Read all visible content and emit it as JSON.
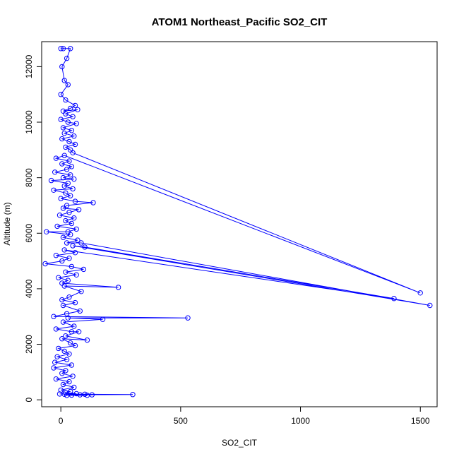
{
  "chart_data": {
    "type": "line",
    "title": "ATOM1 Northeast_Pacific SO2_CIT",
    "xlabel": "SO2_CIT",
    "ylabel": "Altitude (m)",
    "xlim": [
      -80,
      1570
    ],
    "ylim": [
      -250,
      12900
    ],
    "xticks": [
      0,
      500,
      1000,
      1500
    ],
    "yticks": [
      0,
      2000,
      4000,
      6000,
      8000,
      10000,
      12000
    ],
    "grid": false,
    "legend": "none",
    "series_color": "#0000ff",
    "points": [
      [
        0,
        12650
      ],
      [
        10,
        12650
      ],
      [
        40,
        12650
      ],
      [
        25,
        12300
      ],
      [
        5,
        12000
      ],
      [
        15,
        11500
      ],
      [
        30,
        11350
      ],
      [
        0,
        11000
      ],
      [
        20,
        10800
      ],
      [
        60,
        10600
      ],
      [
        40,
        10500
      ],
      [
        10,
        10400
      ],
      [
        70,
        10450
      ],
      [
        20,
        10300
      ],
      [
        50,
        10200
      ],
      [
        0,
        10100
      ],
      [
        30,
        10000
      ],
      [
        65,
        9950
      ],
      [
        10,
        9800
      ],
      [
        45,
        9700
      ],
      [
        15,
        9600
      ],
      [
        55,
        9500
      ],
      [
        5,
        9400
      ],
      [
        35,
        9300
      ],
      [
        60,
        9200
      ],
      [
        20,
        9100
      ],
      [
        40,
        9000
      ],
      [
        50,
        8900
      ],
      [
        1500,
        3850
      ],
      [
        15,
        8800
      ],
      [
        -20,
        8700
      ],
      [
        35,
        8600
      ],
      [
        5,
        8500
      ],
      [
        45,
        8400
      ],
      [
        25,
        8300
      ],
      [
        -25,
        8200
      ],
      [
        40,
        8100
      ],
      [
        10,
        8000
      ],
      [
        55,
        7950
      ],
      [
        -40,
        7900
      ],
      [
        30,
        7800
      ],
      [
        15,
        7700
      ],
      [
        50,
        7600
      ],
      [
        -30,
        7550
      ],
      [
        20,
        7450
      ],
      [
        40,
        7350
      ],
      [
        0,
        7250
      ],
      [
        60,
        7150
      ],
      [
        135,
        7100
      ],
      [
        25,
        7000
      ],
      [
        10,
        6900
      ],
      [
        75,
        6850
      ],
      [
        35,
        6750
      ],
      [
        -5,
        6650
      ],
      [
        55,
        6550
      ],
      [
        20,
        6450
      ],
      [
        45,
        6350
      ],
      [
        -15,
        6250
      ],
      [
        65,
        6150
      ],
      [
        30,
        6050
      ],
      [
        -60,
        6050
      ],
      [
        40,
        5950
      ],
      [
        10,
        5850
      ],
      [
        70,
        5750
      ],
      [
        25,
        5650
      ],
      [
        85,
        5650
      ],
      [
        1540,
        3400
      ],
      [
        50,
        5550
      ],
      [
        100,
        5500
      ],
      [
        1390,
        3650
      ],
      [
        15,
        5400
      ],
      [
        60,
        5300
      ],
      [
        -20,
        5200
      ],
      [
        35,
        5100
      ],
      [
        5,
        5000
      ],
      [
        -65,
        4900
      ],
      [
        45,
        4800
      ],
      [
        95,
        4700
      ],
      [
        20,
        4600
      ],
      [
        65,
        4500
      ],
      [
        -10,
        4400
      ],
      [
        30,
        4300
      ],
      [
        5,
        4200
      ],
      [
        240,
        4050
      ],
      [
        15,
        4100
      ],
      [
        85,
        3900
      ],
      [
        35,
        3700
      ],
      [
        5,
        3600
      ],
      [
        60,
        3500
      ],
      [
        10,
        3400
      ],
      [
        80,
        3200
      ],
      [
        25,
        3100
      ],
      [
        -30,
        3000
      ],
      [
        530,
        2950
      ],
      [
        30,
        2950
      ],
      [
        175,
        2900
      ],
      [
        10,
        2800
      ],
      [
        55,
        2650
      ],
      [
        -20,
        2550
      ],
      [
        45,
        2450
      ],
      [
        75,
        2450
      ],
      [
        20,
        2300
      ],
      [
        110,
        2150
      ],
      [
        5,
        2200
      ],
      [
        40,
        2050
      ],
      [
        60,
        1950
      ],
      [
        -10,
        1850
      ],
      [
        15,
        1750
      ],
      [
        35,
        1650
      ],
      [
        -15,
        1550
      ],
      [
        25,
        1450
      ],
      [
        -25,
        1350
      ],
      [
        45,
        1250
      ],
      [
        -30,
        1150
      ],
      [
        20,
        1050
      ],
      [
        5,
        950
      ],
      [
        50,
        850
      ],
      [
        -20,
        750
      ],
      [
        35,
        650
      ],
      [
        10,
        550
      ],
      [
        55,
        450
      ],
      [
        0,
        350
      ],
      [
        40,
        300
      ],
      [
        20,
        250
      ],
      [
        65,
        220
      ],
      [
        -5,
        210
      ],
      [
        100,
        200
      ],
      [
        300,
        190
      ],
      [
        80,
        180
      ],
      [
        130,
        180
      ],
      [
        45,
        170
      ],
      [
        25,
        160
      ],
      [
        110,
        165
      ],
      [
        15,
        200
      ]
    ]
  }
}
